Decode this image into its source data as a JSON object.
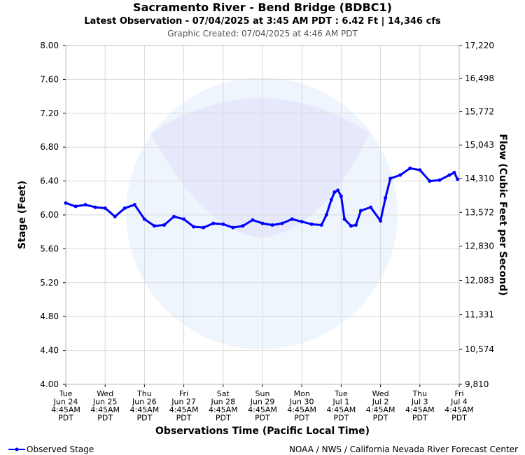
{
  "chart_data": {
    "type": "line",
    "title": "Sacramento River - Bend Bridge (BDBC1)",
    "subtitle": "Latest Observation - 07/04/2025 at 3:45 AM PDT : 6.42 Ft | 14,346 cfs",
    "created": "Graphic Created: 07/04/2025 at 4:46 AM PDT",
    "ylabel": "Stage (Feet)",
    "y2label": "Flow (Cubic Feet per Second)",
    "xlabel": "Observations Time (Pacific Local Time)",
    "footer": "NOAA / NWS / California Nevada River Forecast Center",
    "legend": "lower left",
    "grid": true,
    "x": [
      "Jun 24 04:45",
      "Jun 24 10:45",
      "Jun 24 16:45",
      "Jun 24 22:45",
      "Jun 25 04:45",
      "Jun 25 10:45",
      "Jun 25 16:45",
      "Jun 25 22:45",
      "Jun 26 04:45",
      "Jun 26 10:45",
      "Jun 26 16:45",
      "Jun 26 22:45",
      "Jun 27 04:45",
      "Jun 27 10:45",
      "Jun 27 16:45",
      "Jun 27 22:45",
      "Jun 28 04:45",
      "Jun 28 10:45",
      "Jun 28 16:45",
      "Jun 28 22:45",
      "Jun 29 04:45",
      "Jun 29 10:45",
      "Jun 29 16:45",
      "Jun 29 22:45",
      "Jun 30 04:45",
      "Jun 30 10:45",
      "Jun 30 16:45",
      "Jun 30 19:45",
      "Jun 30 22:45",
      "Jul 1 00:45",
      "Jul 1 02:45",
      "Jul 1 04:45",
      "Jul 1 06:45",
      "Jul 1 10:45",
      "Jul 1 13:45",
      "Jul 1 16:45",
      "Jul 1 22:45",
      "Jul 2 04:45",
      "Jul 2 07:45",
      "Jul 2 10:45",
      "Jul 2 16:45",
      "Jul 2 22:45",
      "Jul 3 04:45",
      "Jul 3 10:45",
      "Jul 3 16:45",
      "Jul 3 22:45",
      "Jul 4 01:45",
      "Jul 4 03:45"
    ],
    "series": [
      {
        "name": "Observed Stage",
        "color": "#0000ff",
        "values": [
          6.14,
          6.1,
          6.12,
          6.09,
          6.08,
          5.98,
          6.08,
          6.12,
          5.95,
          5.87,
          5.88,
          5.98,
          5.95,
          5.86,
          5.85,
          5.9,
          5.89,
          5.85,
          5.87,
          5.94,
          5.9,
          5.88,
          5.9,
          5.95,
          5.92,
          5.89,
          5.88,
          6.0,
          6.18,
          6.27,
          6.29,
          6.22,
          5.95,
          5.87,
          5.88,
          6.05,
          6.09,
          5.93,
          6.2,
          6.43,
          6.47,
          6.55,
          6.53,
          6.4,
          6.41,
          6.47,
          6.5,
          6.42
        ]
      }
    ],
    "ylim": [
      4.0,
      8.0
    ],
    "yticks": [
      {
        "value": 4.0,
        "label": "4.00"
      },
      {
        "value": 4.4,
        "label": "4.40"
      },
      {
        "value": 4.8,
        "label": "4.80"
      },
      {
        "value": 5.2,
        "label": "5.20"
      },
      {
        "value": 5.6,
        "label": "5.60"
      },
      {
        "value": 6.0,
        "label": "6.00"
      },
      {
        "value": 6.4,
        "label": "6.40"
      },
      {
        "value": 6.8,
        "label": "6.80"
      },
      {
        "value": 7.2,
        "label": "7.20"
      },
      {
        "value": 7.6,
        "label": "7.60"
      },
      {
        "value": 8.0,
        "label": "8.00"
      }
    ],
    "y2lim": [
      9810,
      17220
    ],
    "y2ticks": [
      {
        "value": 9810,
        "label": "9,810"
      },
      {
        "value": 10574,
        "label": "10,574"
      },
      {
        "value": 11331,
        "label": "11,331"
      },
      {
        "value": 12083,
        "label": "12,083"
      },
      {
        "value": 12830,
        "label": "12,830"
      },
      {
        "value": 13572,
        "label": "13,572"
      },
      {
        "value": 14310,
        "label": "14,310"
      },
      {
        "value": 15043,
        "label": "15,043"
      },
      {
        "value": 15772,
        "label": "15,772"
      },
      {
        "value": 16498,
        "label": "16,498"
      },
      {
        "value": 17220,
        "label": "17,220"
      }
    ],
    "xlim": [
      "Jun 24 04:45",
      "Jul 4 04:45"
    ],
    "xticks": [
      {
        "value": "Jun 24 04:45",
        "label": [
          "Tue",
          "Jun 24",
          "4:45AM",
          "PDT"
        ]
      },
      {
        "value": "Jun 25 04:45",
        "label": [
          "Wed",
          "Jun 25",
          "4:45AM",
          "PDT"
        ]
      },
      {
        "value": "Jun 26 04:45",
        "label": [
          "Thu",
          "Jun 26",
          "4:45AM",
          "PDT"
        ]
      },
      {
        "value": "Jun 27 04:45",
        "label": [
          "Fri",
          "Jun 27",
          "4:45AM",
          "PDT"
        ]
      },
      {
        "value": "Jun 28 04:45",
        "label": [
          "Sat",
          "Jun 28",
          "4:45AM",
          "PDT"
        ]
      },
      {
        "value": "Jun 29 04:45",
        "label": [
          "Sun",
          "Jun 29",
          "4:45AM",
          "PDT"
        ]
      },
      {
        "value": "Jun 30 04:45",
        "label": [
          "Mon",
          "Jun 30",
          "4:45AM",
          "PDT"
        ]
      },
      {
        "value": "Jul 1 04:45",
        "label": [
          "Tue",
          "Jul 1",
          "4:45AM",
          "PDT"
        ]
      },
      {
        "value": "Jul 2 04:45",
        "label": [
          "Wed",
          "Jul 2",
          "4:45AM",
          "PDT"
        ]
      },
      {
        "value": "Jul 3 04:45",
        "label": [
          "Thu",
          "Jul 3",
          "4:45AM",
          "PDT"
        ]
      },
      {
        "value": "Jul 4 04:45",
        "label": [
          "Fri",
          "Jul 4",
          "4:45AM",
          "PDT"
        ]
      }
    ]
  }
}
